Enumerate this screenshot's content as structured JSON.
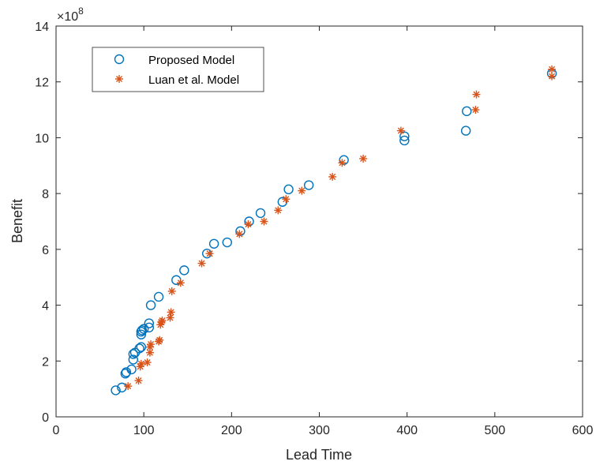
{
  "chart_data": {
    "type": "scatter",
    "xlabel": "Lead Time",
    "ylabel": "Benefit",
    "xlim": [
      0,
      600
    ],
    "ylim": [
      0,
      14
    ],
    "x_ticks": [
      0,
      100,
      200,
      300,
      400,
      500,
      600
    ],
    "y_ticks": [
      0,
      2,
      4,
      6,
      8,
      10,
      12,
      14
    ],
    "y_multiplier_base": "×10",
    "y_multiplier_exp": "8",
    "grid": false,
    "legend_position": "top-left",
    "series": [
      {
        "name": "Proposed Model",
        "marker": "circle",
        "color": "#0072BD",
        "points": [
          [
            68,
            0.95
          ],
          [
            75,
            1.05
          ],
          [
            79,
            1.55
          ],
          [
            80,
            1.6
          ],
          [
            86,
            1.7
          ],
          [
            88,
            2.05
          ],
          [
            88,
            2.25
          ],
          [
            90,
            2.3
          ],
          [
            95,
            2.45
          ],
          [
            97,
            2.5
          ],
          [
            97,
            2.95
          ],
          [
            97,
            3.05
          ],
          [
            98,
            3.1
          ],
          [
            100,
            3.15
          ],
          [
            106,
            3.2
          ],
          [
            106,
            3.35
          ],
          [
            108,
            4.0
          ],
          [
            117,
            4.3
          ],
          [
            137,
            4.9
          ],
          [
            146,
            5.25
          ],
          [
            172,
            5.85
          ],
          [
            180,
            6.2
          ],
          [
            195,
            6.25
          ],
          [
            210,
            6.65
          ],
          [
            220,
            7.0
          ],
          [
            233,
            7.3
          ],
          [
            258,
            7.7
          ],
          [
            265,
            8.15
          ],
          [
            288,
            8.3
          ],
          [
            328,
            9.2
          ],
          [
            397,
            9.9
          ],
          [
            397,
            10.05
          ],
          [
            467,
            10.25
          ],
          [
            468,
            10.95
          ],
          [
            565,
            12.3
          ]
        ]
      },
      {
        "name": "Luan et al. Model",
        "marker": "asterisk",
        "color": "#D95319",
        "points": [
          [
            82,
            1.1
          ],
          [
            94,
            1.3
          ],
          [
            96,
            1.8
          ],
          [
            97,
            1.9
          ],
          [
            104,
            1.95
          ],
          [
            107,
            2.3
          ],
          [
            107,
            2.5
          ],
          [
            108,
            2.6
          ],
          [
            117,
            2.7
          ],
          [
            118,
            2.75
          ],
          [
            119,
            3.3
          ],
          [
            120,
            3.4
          ],
          [
            121,
            3.45
          ],
          [
            130,
            3.55
          ],
          [
            131,
            3.75
          ],
          [
            132,
            4.5
          ],
          [
            142,
            4.8
          ],
          [
            166,
            5.5
          ],
          [
            175,
            5.85
          ],
          [
            209,
            6.55
          ],
          [
            219,
            6.9
          ],
          [
            237,
            7.0
          ],
          [
            253,
            7.4
          ],
          [
            262,
            7.8
          ],
          [
            280,
            8.1
          ],
          [
            315,
            8.6
          ],
          [
            326,
            9.1
          ],
          [
            350,
            9.25
          ],
          [
            393,
            10.25
          ],
          [
            478,
            11.0
          ],
          [
            479,
            11.55
          ],
          [
            565,
            12.2
          ],
          [
            565,
            12.45
          ]
        ]
      }
    ]
  }
}
